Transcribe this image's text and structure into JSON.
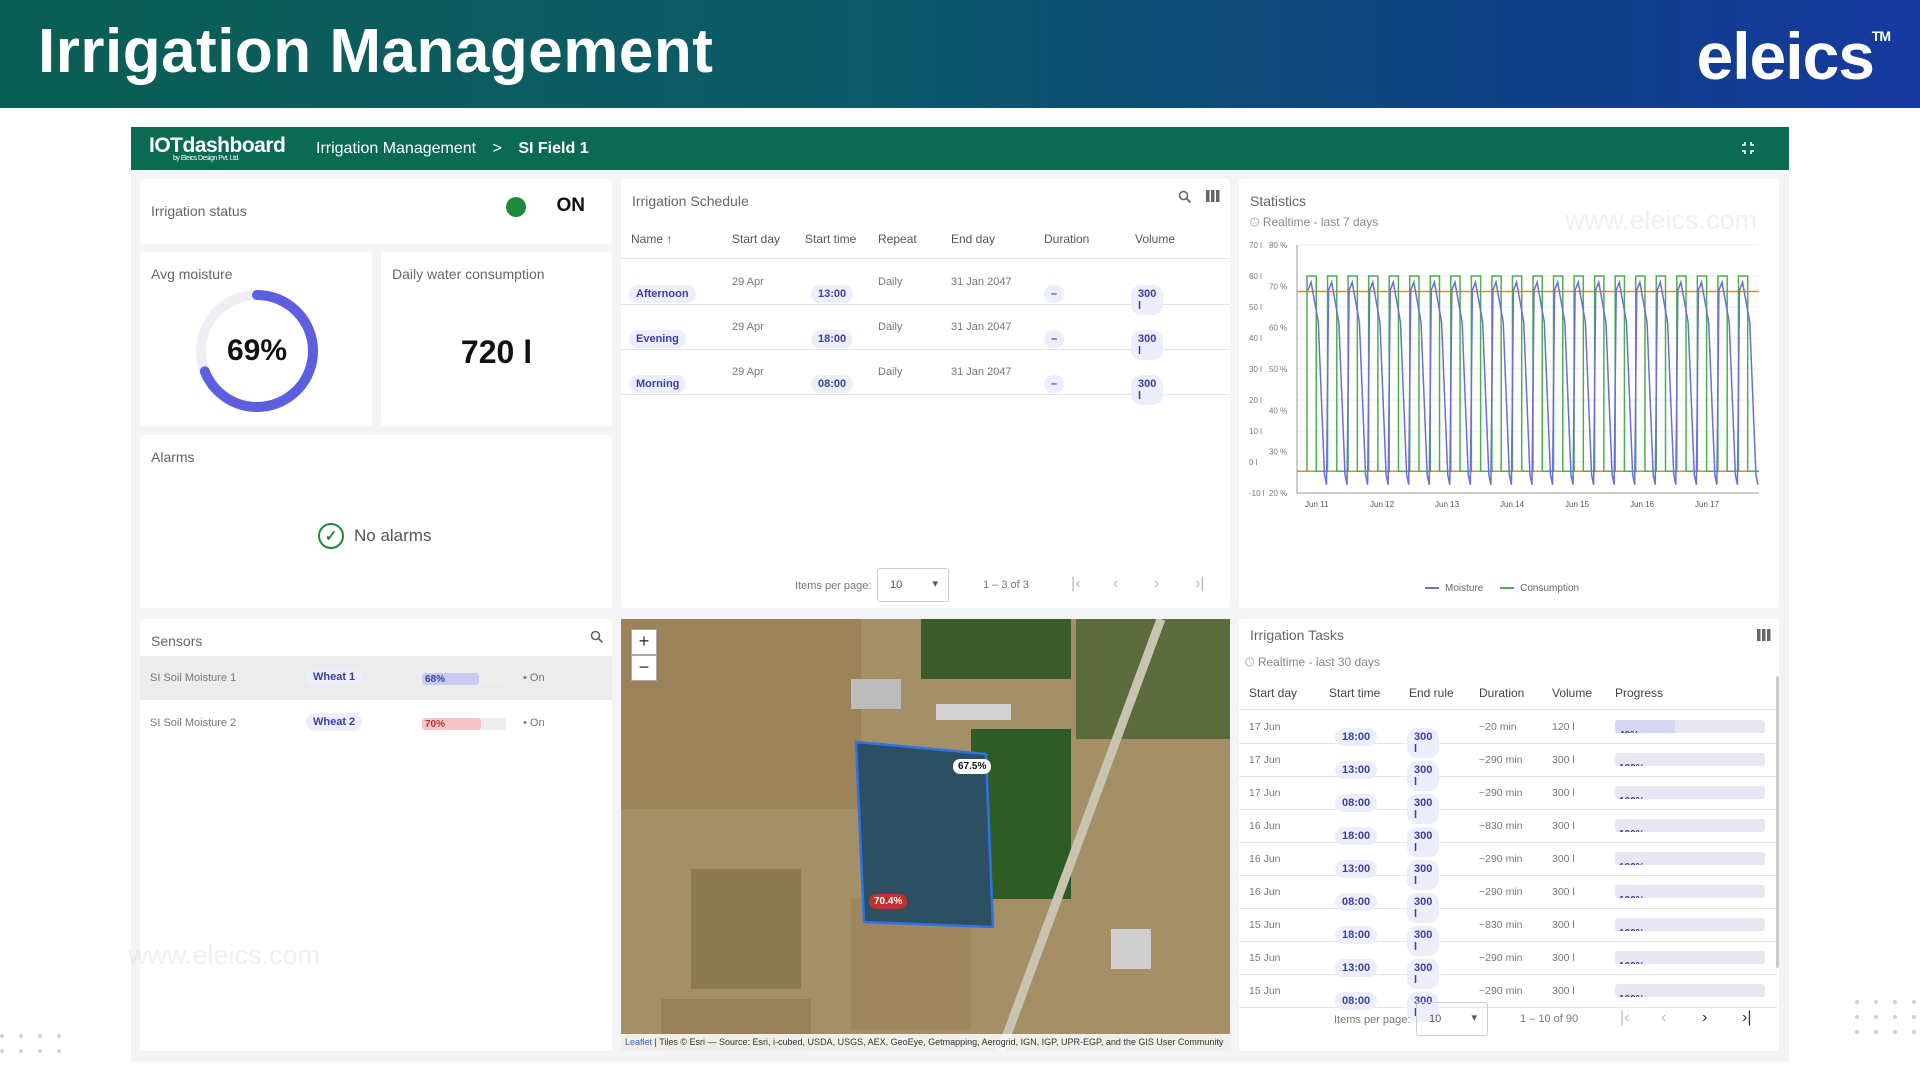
{
  "banner": {
    "title": "Irrigation Management",
    "brand": "eleics",
    "tm": "TM"
  },
  "topbar": {
    "logo": "IOTdashboard",
    "logo_sub": "by Eleics Design Pvt. Ltd.",
    "crumbs": [
      "Irrigation Management",
      "SI Field 1"
    ],
    "separator": ">"
  },
  "status": {
    "title": "Irrigation status",
    "value": "ON"
  },
  "moisture": {
    "title": "Avg moisture",
    "value_label": "69%",
    "value": 0.69
  },
  "consumption": {
    "title": "Daily water consumption",
    "value": "720 l"
  },
  "alarms": {
    "title": "Alarms",
    "empty": "No alarms"
  },
  "schedule": {
    "title": "Irrigation Schedule",
    "columns": [
      "Name ↑",
      "Start day",
      "Start time",
      "Repeat",
      "End day",
      "Duration",
      "Volume"
    ],
    "rows": [
      {
        "name": "Afternoon",
        "start_day": "29 Apr",
        "start_time": "13:00",
        "repeat": "Daily",
        "end_day": "31 Jan 2047",
        "duration": "–",
        "volume": "300 l"
      },
      {
        "name": "Evening",
        "start_day": "29 Apr",
        "start_time": "18:00",
        "repeat": "Daily",
        "end_day": "31 Jan 2047",
        "duration": "–",
        "volume": "300 l"
      },
      {
        "name": "Morning",
        "start_day": "29 Apr",
        "start_time": "08:00",
        "repeat": "Daily",
        "end_day": "31 Jan 2047",
        "duration": "–",
        "volume": "300 l"
      }
    ],
    "items_label": "Items per page:",
    "items_value": "10",
    "range": "1 – 3 of 3"
  },
  "statistics": {
    "title": "Statistics",
    "subtitle": "Realtime - last 7 days",
    "legend": [
      "Moisture",
      "Consumption"
    ],
    "colors": {
      "moisture": "#6b6fd6",
      "consumption": "#4caf50",
      "threshold_high": "#e0893a",
      "threshold_low": "#e0893a"
    },
    "left_ticks": [
      "70 l",
      "60 l",
      "50 l",
      "40 l",
      "30 l",
      "20 l",
      "10 l",
      "0 l",
      "-10 l"
    ],
    "right_ticks": [
      "80 %",
      "70 %",
      "60 %",
      "50 %",
      "40 %",
      "30 %",
      "20 %"
    ],
    "x_ticks": [
      "Jun 11",
      "Jun 12",
      "Jun 13",
      "Jun 14",
      "Jun 15",
      "Jun 16",
      "Jun 17"
    ]
  },
  "chart_data": {
    "type": "line",
    "title": "Statistics",
    "subtitle": "Realtime - last 7 days",
    "x": [
      "Jun 11",
      "Jun 12",
      "Jun 13",
      "Jun 14",
      "Jun 15",
      "Jun 16",
      "Jun 17"
    ],
    "ylim_left": [
      -10,
      70
    ],
    "ylim_right": [
      20,
      80
    ],
    "series": [
      {
        "name": "Moisture",
        "axis": "right",
        "values": [
          67,
          69,
          71,
          70,
          68,
          69,
          70
        ],
        "period_range": [
          22,
          71
        ]
      },
      {
        "name": "Consumption",
        "axis": "left",
        "values": [
          0,
          0,
          0,
          0,
          0,
          0,
          0
        ],
        "period_range": [
          -3,
          60
        ]
      }
    ],
    "reference_lines": [
      {
        "axis": "left",
        "value": 55
      },
      {
        "axis": "left",
        "value": -3
      }
    ],
    "legend_position": "bottom",
    "grid": true
  },
  "sensors": {
    "title": "Sensors",
    "rows": [
      {
        "name": "SI Soil Moisture 1",
        "crop": "Wheat 1",
        "value": "68%",
        "fraction": 0.68,
        "color": "#c9cbf3",
        "status": "On"
      },
      {
        "name": "SI Soil Moisture 2",
        "crop": "Wheat 2",
        "value": "70%",
        "fraction": 0.7,
        "color": "#f6c4c4",
        "status": "On"
      }
    ]
  },
  "map": {
    "zoom_in": "+",
    "zoom_out": "−",
    "label_top": "67.5%",
    "label_bottom": "70.4%",
    "attribution_link": "Leaflet",
    "attribution": "| Tiles © Esri — Source: Esri, i-cubed, USDA, USGS, AEX, GeoEye, Getmapping, Aerogrid, IGN, IGP, UPR-EGP, and the GIS User Community"
  },
  "tasks": {
    "title": "Irrigation Tasks",
    "subtitle": "Realtime - last 30 days",
    "columns": [
      "Start day",
      "Start time",
      "End rule",
      "Duration",
      "Volume",
      "Progress"
    ],
    "rows": [
      {
        "day": "17 Jun",
        "time": "18:00",
        "rule": "300 l",
        "duration": "~20 min",
        "volume": "120 l",
        "progress": "40%",
        "fraction": 0.4
      },
      {
        "day": "17 Jun",
        "time": "13:00",
        "rule": "300 l",
        "duration": "~290 min",
        "volume": "300 l",
        "progress": "100%",
        "fraction": 1
      },
      {
        "day": "17 Jun",
        "time": "08:00",
        "rule": "300 l",
        "duration": "~290 min",
        "volume": "300 l",
        "progress": "100%",
        "fraction": 1
      },
      {
        "day": "16 Jun",
        "time": "18:00",
        "rule": "300 l",
        "duration": "~830 min",
        "volume": "300 l",
        "progress": "100%",
        "fraction": 1
      },
      {
        "day": "16 Jun",
        "time": "13:00",
        "rule": "300 l",
        "duration": "~290 min",
        "volume": "300 l",
        "progress": "100%",
        "fraction": 1
      },
      {
        "day": "16 Jun",
        "time": "08:00",
        "rule": "300 l",
        "duration": "~290 min",
        "volume": "300 l",
        "progress": "100%",
        "fraction": 1
      },
      {
        "day": "15 Jun",
        "time": "18:00",
        "rule": "300 l",
        "duration": "~830 min",
        "volume": "300 l",
        "progress": "100%",
        "fraction": 1
      },
      {
        "day": "15 Jun",
        "time": "13:00",
        "rule": "300 l",
        "duration": "~290 min",
        "volume": "300 l",
        "progress": "100%",
        "fraction": 1
      },
      {
        "day": "15 Jun",
        "time": "08:00",
        "rule": "300 l",
        "duration": "~290 min",
        "volume": "300 l",
        "progress": "100%",
        "fraction": 1
      }
    ],
    "items_label": "Items per page:",
    "items_value": "10",
    "range": "1 – 10 of 90"
  },
  "watermark": "www.eleics.com"
}
